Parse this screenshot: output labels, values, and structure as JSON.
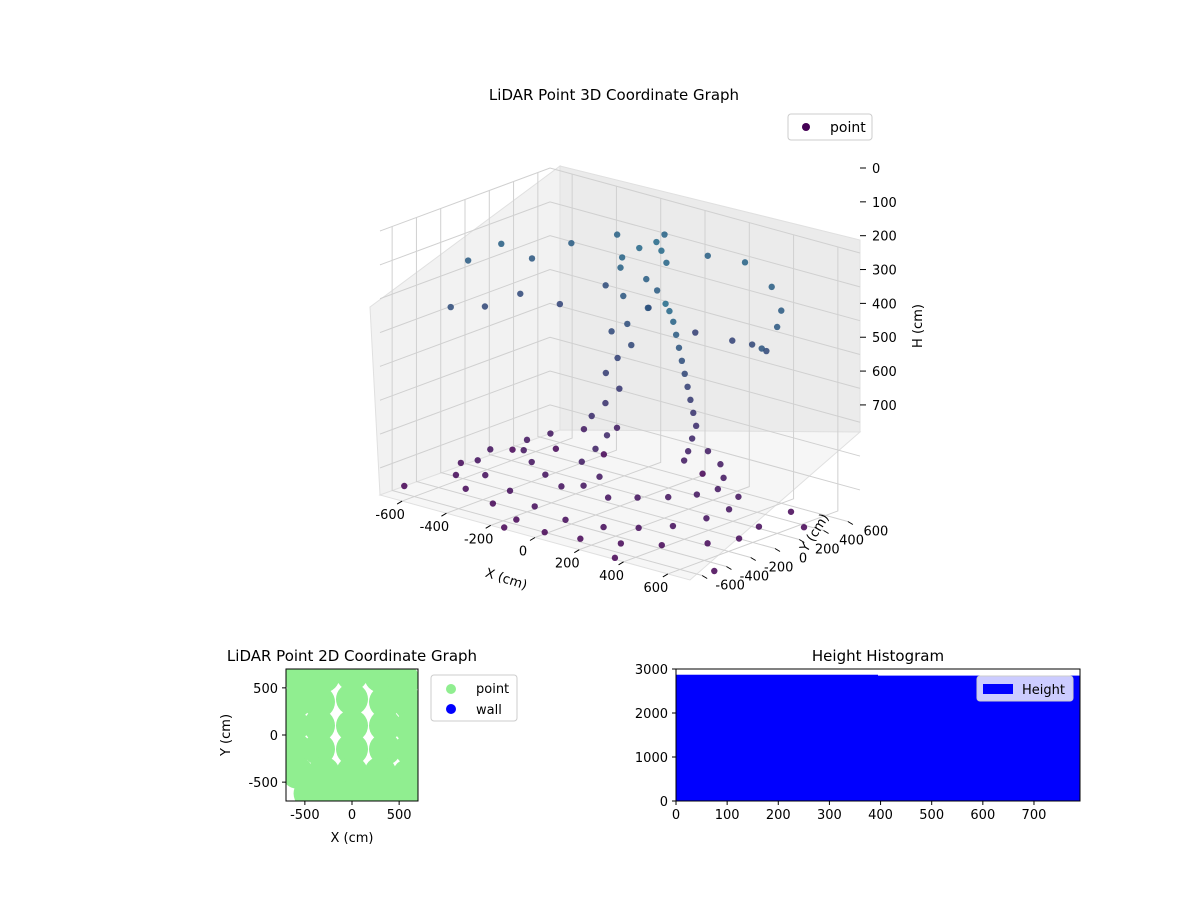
{
  "chart_data": [
    {
      "type": "scatter",
      "title": "LiDAR Point 3D Coordinate Graph",
      "xlabel": "X (cm)",
      "ylabel": "Y (cm)",
      "zlabel": "H (cm)",
      "x_ticks": [
        -600,
        -400,
        -200,
        0,
        200,
        400,
        600
      ],
      "y_ticks": [
        -600,
        -400,
        -200,
        0,
        200,
        400,
        600
      ],
      "z_ticks": [
        0,
        100,
        200,
        300,
        400,
        500,
        600,
        700
      ],
      "xlim": [
        -700,
        700
      ],
      "ylim": [
        -700,
        700
      ],
      "zlim": [
        0,
        780
      ],
      "z_inverted": true,
      "legend": [
        {
          "name": "point",
          "color": "#440154"
        }
      ],
      "legend_position": "upper-right",
      "grid": true,
      "colormap": "viridis",
      "points": [
        [
          -620,
          -120,
          150
        ],
        [
          -580,
          80,
          120
        ],
        [
          -540,
          260,
          180
        ],
        [
          -450,
          420,
          140
        ],
        [
          -320,
          560,
          110
        ],
        [
          -150,
          640,
          90
        ],
        [
          40,
          650,
          120
        ],
        [
          230,
          610,
          100
        ],
        [
          400,
          520,
          130
        ],
        [
          520,
          380,
          160
        ],
        [
          600,
          200,
          170
        ],
        [
          640,
          0,
          200
        ],
        [
          -600,
          -300,
          260
        ],
        [
          -610,
          0,
          300
        ],
        [
          -560,
          200,
          280
        ],
        [
          -480,
          380,
          320
        ],
        [
          -350,
          520,
          260
        ],
        [
          -200,
          600,
          310
        ],
        [
          0,
          620,
          350
        ],
        [
          200,
          560,
          330
        ],
        [
          350,
          450,
          300
        ],
        [
          480,
          330,
          280
        ],
        [
          -100,
          200,
          90
        ],
        [
          -50,
          250,
          60
        ],
        [
          0,
          300,
          40
        ],
        [
          50,
          250,
          50
        ],
        [
          100,
          200,
          70
        ],
        [
          -80,
          150,
          110
        ],
        [
          20,
          180,
          130
        ],
        [
          80,
          160,
          150
        ],
        [
          -40,
          100,
          180
        ],
        [
          60,
          120,
          200
        ],
        [
          0,
          60,
          250
        ],
        [
          -60,
          40,
          280
        ],
        [
          40,
          20,
          300
        ],
        [
          0,
          -20,
          340
        ],
        [
          -20,
          -80,
          380
        ],
        [
          30,
          -60,
          420
        ],
        [
          0,
          -120,
          460
        ],
        [
          -40,
          -160,
          500
        ],
        [
          40,
          -180,
          540
        ],
        [
          10,
          -220,
          580
        ],
        [
          -30,
          -260,
          620
        ],
        [
          50,
          -260,
          650
        ],
        [
          0,
          -300,
          680
        ],
        [
          -100,
          -300,
          700
        ],
        [
          100,
          -280,
          700
        ],
        [
          -200,
          -250,
          690
        ],
        [
          200,
          -220,
          690
        ],
        [
          -300,
          -180,
          680
        ],
        [
          300,
          -150,
          680
        ],
        [
          -380,
          -100,
          670
        ],
        [
          380,
          -60,
          670
        ],
        [
          -420,
          0,
          660
        ],
        [
          420,
          40,
          660
        ],
        [
          -380,
          120,
          650
        ],
        [
          380,
          160,
          650
        ],
        [
          -300,
          250,
          640
        ],
        [
          300,
          280,
          640
        ],
        [
          -200,
          340,
          630
        ],
        [
          200,
          360,
          630
        ],
        [
          -250,
          -450,
          720
        ],
        [
          -100,
          -520,
          730
        ],
        [
          50,
          -540,
          740
        ],
        [
          200,
          -500,
          740
        ],
        [
          320,
          -430,
          730
        ],
        [
          420,
          -330,
          720
        ],
        [
          -400,
          -380,
          710
        ],
        [
          -500,
          -260,
          700
        ],
        [
          -520,
          -120,
          690
        ],
        [
          500,
          -200,
          700
        ],
        [
          520,
          -50,
          690
        ],
        [
          480,
          100,
          680
        ],
        [
          300,
          80,
          500
        ],
        [
          320,
          20,
          450
        ],
        [
          340,
          -40,
          400
        ],
        [
          360,
          -100,
          350
        ],
        [
          380,
          -160,
          300
        ],
        [
          400,
          -220,
          250
        ],
        [
          420,
          -280,
          200
        ],
        [
          440,
          -340,
          150
        ],
        [
          460,
          -400,
          100
        ],
        [
          470,
          -450,
          60
        ],
        [
          480,
          -500,
          30
        ],
        [
          260,
          120,
          550
        ],
        [
          220,
          160,
          600
        ],
        [
          180,
          200,
          640
        ],
        [
          -300,
          -500,
          760
        ],
        [
          -150,
          -580,
          770
        ],
        [
          0,
          -620,
          775
        ],
        [
          150,
          -600,
          770
        ],
        [
          300,
          -540,
          765
        ],
        [
          430,
          -440,
          760
        ],
        [
          -450,
          -450,
          750
        ],
        [
          -560,
          -330,
          745
        ],
        [
          -620,
          -180,
          740
        ],
        [
          560,
          -300,
          750
        ],
        [
          620,
          -150,
          745
        ],
        [
          600,
          50,
          740
        ],
        [
          -520,
          420,
          760
        ],
        [
          -380,
          560,
          770
        ],
        [
          520,
          460,
          765
        ],
        [
          -650,
          300,
          770
        ],
        [
          650,
          330,
          770
        ],
        [
          0,
          680,
          775
        ],
        [
          -700,
          -500,
          780
        ],
        [
          700,
          -500,
          780
        ],
        [
          -150,
          -680,
          780
        ],
        [
          350,
          -680,
          780
        ]
      ]
    },
    {
      "type": "scatter",
      "title": "LiDAR Point 2D Coordinate Graph",
      "xlabel": "X (cm)",
      "ylabel": "Y (cm)",
      "x_ticks": [
        -500,
        0,
        500
      ],
      "y_ticks": [
        -500,
        0,
        500
      ],
      "xlim": [
        -700,
        700
      ],
      "ylim": [
        -700,
        700
      ],
      "series": [
        {
          "name": "point",
          "color": "#90ee90"
        },
        {
          "name": "wall",
          "color": "#0000ff"
        }
      ],
      "legend_position": "outside-right",
      "point_blobs": [
        [
          -550,
          600
        ],
        [
          -300,
          620
        ],
        [
          0,
          640
        ],
        [
          300,
          620
        ],
        [
          550,
          580
        ],
        [
          -600,
          350
        ],
        [
          -350,
          350
        ],
        [
          0,
          380
        ],
        [
          350,
          350
        ],
        [
          620,
          320
        ],
        [
          -620,
          100
        ],
        [
          -350,
          100
        ],
        [
          0,
          100
        ],
        [
          350,
          100
        ],
        [
          620,
          80
        ],
        [
          -600,
          -150
        ],
        [
          -350,
          -150
        ],
        [
          0,
          -150
        ],
        [
          350,
          -150
        ],
        [
          620,
          -150
        ],
        [
          -580,
          -400
        ],
        [
          -300,
          -400
        ],
        [
          0,
          -400
        ],
        [
          300,
          -400
        ],
        [
          600,
          -420
        ],
        [
          -450,
          -620
        ],
        [
          -150,
          -640
        ],
        [
          150,
          -640
        ],
        [
          450,
          -620
        ],
        [
          620,
          -600
        ]
      ]
    },
    {
      "type": "bar",
      "title": "Height Histogram",
      "series": [
        {
          "name": "Height",
          "color": "#0000ff"
        }
      ],
      "x_ticks": [
        0,
        100,
        200,
        300,
        400,
        500,
        600,
        700
      ],
      "y_ticks": [
        0,
        1000,
        2000,
        3000
      ],
      "xlim": [
        0,
        790
      ],
      "ylim": [
        0,
        3000
      ],
      "bins": [
        {
          "from": 0,
          "to": 395,
          "value": 2870
        },
        {
          "from": 395,
          "to": 790,
          "value": 2850
        }
      ],
      "legend_position": "upper-right"
    }
  ]
}
